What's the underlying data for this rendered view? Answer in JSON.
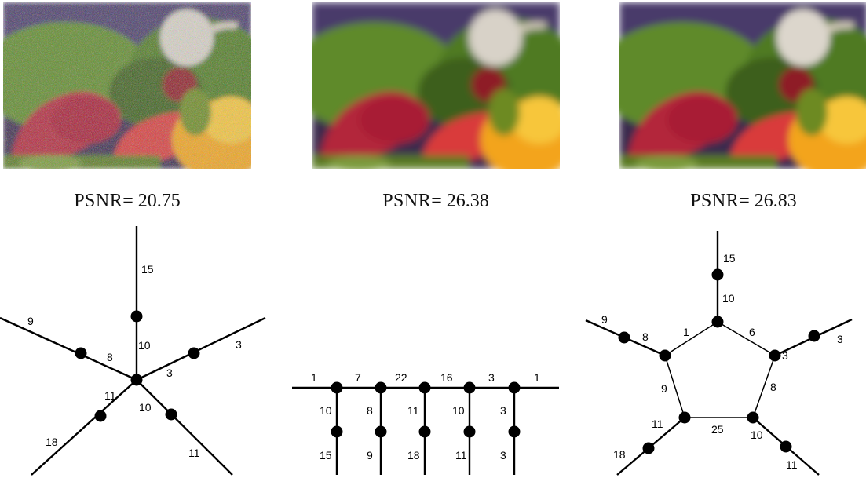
{
  "figure": {
    "panels": [
      {
        "psnr_label": "PSNR",
        "psnr_sep": "= ",
        "psnr_value": "20.75"
      },
      {
        "psnr_label": "PSNR",
        "psnr_sep": "= ",
        "psnr_value": "26.38"
      },
      {
        "psnr_label": "PSNR",
        "psnr_sep": "= ",
        "psnr_value": "26.83"
      }
    ],
    "graphs": {
      "star": {
        "labels": [
          "15",
          "10",
          "9",
          "8",
          "3",
          "3",
          "11",
          "18",
          "10",
          "11"
        ]
      },
      "chain": {
        "top_labels": [
          "1",
          "7",
          "22",
          "16",
          "3",
          "1"
        ],
        "mid_labels": [
          "10",
          "8",
          "11",
          "10",
          "3"
        ],
        "bottom_labels": [
          "15",
          "9",
          "18",
          "11",
          "3"
        ]
      },
      "pentagon": {
        "spoke_labels": [
          "15",
          "10",
          "9",
          "8",
          "3",
          "3",
          "18",
          "11",
          "11",
          "10"
        ],
        "cycle_labels": [
          "1",
          "6",
          "8",
          "25",
          "9"
        ]
      }
    },
    "colors": {
      "ink": "#000000",
      "background": "#ffffff"
    }
  }
}
